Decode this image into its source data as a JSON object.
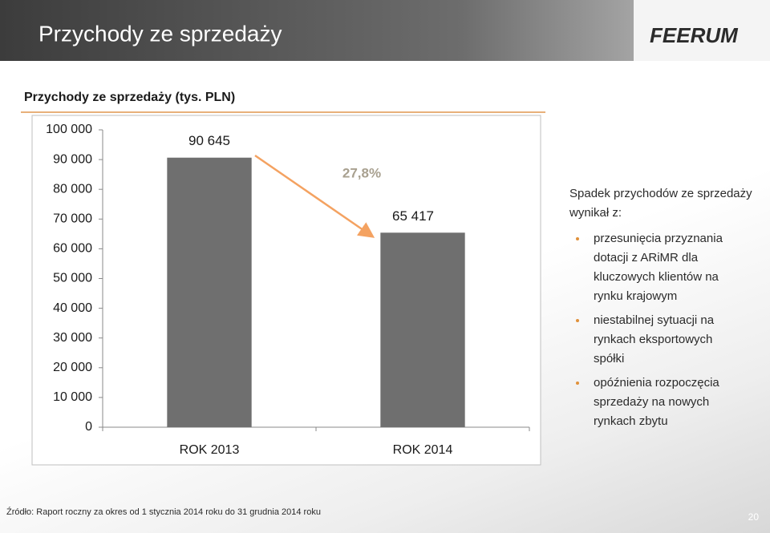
{
  "header": {
    "title": "Przychody ze sprzedaży",
    "logo": "FEERUM"
  },
  "chart_data": {
    "type": "bar",
    "title": "Przychody ze sprzedaży (tys. PLN)",
    "categories": [
      "ROK 2013",
      "ROK 2014"
    ],
    "values": [
      90645,
      65417
    ],
    "value_labels": [
      "90 645",
      "65 417"
    ],
    "color": "#6f6f6f",
    "ylim": [
      0,
      100000
    ],
    "yticks": [
      0,
      {
        "value": 10000,
        "label": "10 000"
      },
      {
        "value": 20000,
        "label": "20 000"
      },
      {
        "value": 30000,
        "label": "30 000"
      },
      {
        "value": 40000,
        "label": "40 000"
      },
      {
        "value": 50000,
        "label": "50 000"
      },
      {
        "value": 60000,
        "label": "60 000"
      },
      {
        "value": 70000,
        "label": "70 000"
      },
      {
        "value": 80000,
        "label": "80 000"
      },
      {
        "value": 90000,
        "label": "90 000"
      },
      {
        "value": 100000,
        "label": "100 000"
      }
    ],
    "grid": false,
    "annotation": "27,8%"
  },
  "notes": {
    "intro": "Spadek przychodów ze sprzedaży wynikał z:",
    "bullets": [
      "przesunięcia przyznania dotacji z ARiMR dla kluczowych klientów na rynku krajowym",
      "niestabilnej sytuacji  na rynkach eksportowych spółki",
      "opóźnienia rozpoczęcia sprzedaży na nowych rynkach zbytu"
    ]
  },
  "footer": {
    "source": "Źródło: Raport roczny za okres od 1 stycznia 2014 roku do 31 grudnia 2014 roku",
    "page": "20"
  }
}
